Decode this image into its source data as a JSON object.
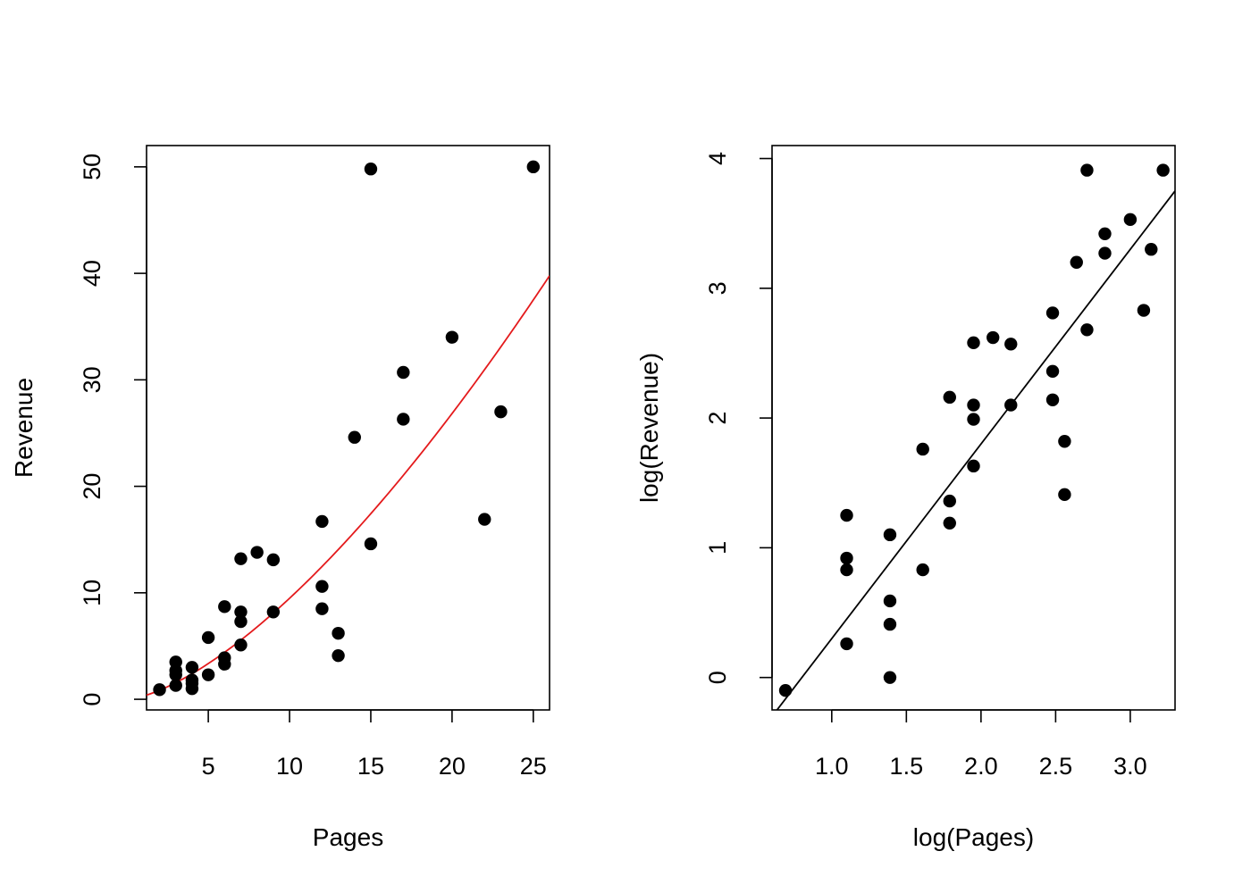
{
  "chart_data": [
    {
      "type": "scatter",
      "title": "",
      "xlabel": "Pages",
      "ylabel": "Revenue",
      "xlim": [
        1.2,
        26
      ],
      "ylim": [
        -1,
        52
      ],
      "xticks": [
        5,
        10,
        15,
        20,
        25
      ],
      "yticks": [
        0,
        10,
        20,
        30,
        40,
        50
      ],
      "grid": false,
      "legend": "none",
      "point_color": "#000000",
      "points": [
        {
          "x": 2,
          "y": 0.9
        },
        {
          "x": 3,
          "y": 1.3
        },
        {
          "x": 3,
          "y": 2.3
        },
        {
          "x": 3,
          "y": 2.7
        },
        {
          "x": 3,
          "y": 3.5
        },
        {
          "x": 4,
          "y": 1.0
        },
        {
          "x": 4,
          "y": 1.5
        },
        {
          "x": 4,
          "y": 1.8
        },
        {
          "x": 4,
          "y": 3.0
        },
        {
          "x": 5,
          "y": 2.3
        },
        {
          "x": 5,
          "y": 5.8
        },
        {
          "x": 6,
          "y": 3.3
        },
        {
          "x": 6,
          "y": 3.9
        },
        {
          "x": 6,
          "y": 8.7
        },
        {
          "x": 7,
          "y": 5.1
        },
        {
          "x": 7,
          "y": 7.3
        },
        {
          "x": 7,
          "y": 8.2
        },
        {
          "x": 7,
          "y": 13.2
        },
        {
          "x": 8,
          "y": 13.8
        },
        {
          "x": 9,
          "y": 8.2
        },
        {
          "x": 9,
          "y": 13.1
        },
        {
          "x": 12,
          "y": 8.5
        },
        {
          "x": 12,
          "y": 10.6
        },
        {
          "x": 12,
          "y": 16.7
        },
        {
          "x": 13,
          "y": 4.1
        },
        {
          "x": 13,
          "y": 6.2
        },
        {
          "x": 14,
          "y": 24.6
        },
        {
          "x": 15,
          "y": 14.6
        },
        {
          "x": 15,
          "y": 49.8
        },
        {
          "x": 17,
          "y": 26.3
        },
        {
          "x": 17,
          "y": 30.7
        },
        {
          "x": 20,
          "y": 34.0
        },
        {
          "x": 22,
          "y": 16.9
        },
        {
          "x": 23,
          "y": 27.0
        },
        {
          "x": 25,
          "y": 50.0
        }
      ],
      "fit_curve": {
        "form": "power",
        "a": 0.3,
        "b": 1.5,
        "color": "#e41a1c"
      }
    },
    {
      "type": "scatter",
      "title": "",
      "xlabel": "log(Pages)",
      "ylabel": "log(Revenue)",
      "xlim": [
        0.6,
        3.3
      ],
      "ylim": [
        -0.25,
        4.1
      ],
      "xticks": [
        1.0,
        1.5,
        2.0,
        2.5,
        3.0
      ],
      "yticks": [
        0,
        1,
        2,
        3,
        4
      ],
      "grid": false,
      "legend": "none",
      "point_color": "#000000",
      "points": [
        {
          "x": 0.69,
          "y": -0.1
        },
        {
          "x": 1.1,
          "y": 0.26
        },
        {
          "x": 1.1,
          "y": 0.83
        },
        {
          "x": 1.1,
          "y": 0.92
        },
        {
          "x": 1.1,
          "y": 1.25
        },
        {
          "x": 1.39,
          "y": 0.0
        },
        {
          "x": 1.39,
          "y": 0.41
        },
        {
          "x": 1.39,
          "y": 0.59
        },
        {
          "x": 1.39,
          "y": 1.1
        },
        {
          "x": 1.61,
          "y": 0.83
        },
        {
          "x": 1.61,
          "y": 1.76
        },
        {
          "x": 1.79,
          "y": 1.19
        },
        {
          "x": 1.79,
          "y": 1.36
        },
        {
          "x": 1.79,
          "y": 2.16
        },
        {
          "x": 1.95,
          "y": 1.63
        },
        {
          "x": 1.95,
          "y": 1.99
        },
        {
          "x": 1.95,
          "y": 2.1
        },
        {
          "x": 1.95,
          "y": 2.58
        },
        {
          "x": 2.08,
          "y": 2.62
        },
        {
          "x": 2.2,
          "y": 2.1
        },
        {
          "x": 2.2,
          "y": 2.57
        },
        {
          "x": 2.48,
          "y": 2.14
        },
        {
          "x": 2.48,
          "y": 2.36
        },
        {
          "x": 2.48,
          "y": 2.81
        },
        {
          "x": 2.56,
          "y": 1.41
        },
        {
          "x": 2.56,
          "y": 1.82
        },
        {
          "x": 2.64,
          "y": 3.2
        },
        {
          "x": 2.71,
          "y": 2.68
        },
        {
          "x": 2.71,
          "y": 3.91
        },
        {
          "x": 2.83,
          "y": 3.27
        },
        {
          "x": 2.83,
          "y": 3.42
        },
        {
          "x": 3.0,
          "y": 3.53
        },
        {
          "x": 3.09,
          "y": 2.83
        },
        {
          "x": 3.14,
          "y": 3.3
        },
        {
          "x": 3.22,
          "y": 3.91
        }
      ],
      "fit_line": {
        "intercept": -1.2,
        "slope": 1.5,
        "color": "#000000"
      }
    }
  ]
}
